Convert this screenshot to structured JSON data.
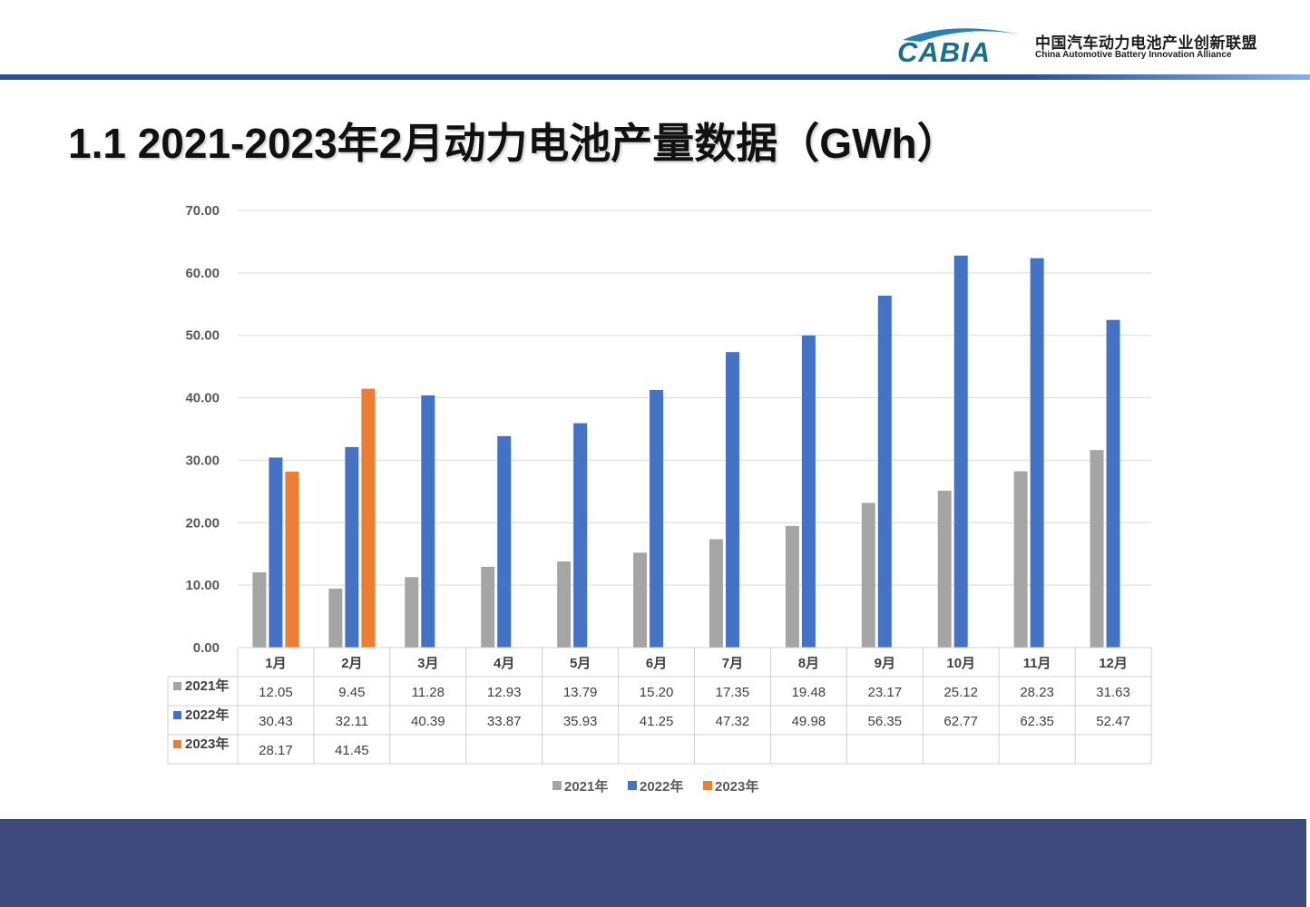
{
  "header": {
    "logo_text": "CABIA",
    "org_cn": "中国汽车动力电池产业创新联盟",
    "org_en": "China Automotive Battery Innovation Alliance"
  },
  "title": "1.1 2021-2023年2月动力电池产量数据（GWh）",
  "colors": {
    "series_2021": "#a5a5a5",
    "series_2022": "#4472c4",
    "series_2023": "#ed7d31",
    "header_line": "#2b4f8c",
    "footer": "#3f4a7c"
  },
  "chart_data": {
    "type": "bar",
    "title": "",
    "xlabel": "",
    "ylabel": "",
    "ylim": [
      0,
      70
    ],
    "yticks": [
      "0.00",
      "10.00",
      "20.00",
      "30.00",
      "40.00",
      "50.00",
      "60.00",
      "70.00"
    ],
    "grid": true,
    "legend_position": "bottom",
    "data_table": true,
    "categories": [
      "1月",
      "2月",
      "3月",
      "4月",
      "5月",
      "6月",
      "7月",
      "8月",
      "9月",
      "10月",
      "11月",
      "12月"
    ],
    "series": [
      {
        "name": "2021年",
        "values": [
          12.05,
          9.45,
          11.28,
          12.93,
          13.79,
          15.2,
          17.35,
          19.48,
          23.17,
          25.12,
          28.23,
          31.63
        ],
        "labels": [
          "12.05",
          "9.45",
          "11.28",
          "12.93",
          "13.79",
          "15.20",
          "17.35",
          "19.48",
          "23.17",
          "25.12",
          "28.23",
          "31.63"
        ]
      },
      {
        "name": "2022年",
        "values": [
          30.43,
          32.11,
          40.39,
          33.87,
          35.93,
          41.25,
          47.32,
          49.98,
          56.35,
          62.77,
          62.35,
          52.47
        ],
        "labels": [
          "30.43",
          "32.11",
          "40.39",
          "33.87",
          "35.93",
          "41.25",
          "47.32",
          "49.98",
          "56.35",
          "62.77",
          "62.35",
          "52.47"
        ]
      },
      {
        "name": "2023年",
        "values": [
          28.17,
          41.45,
          null,
          null,
          null,
          null,
          null,
          null,
          null,
          null,
          null,
          null
        ],
        "labels": [
          "28.17",
          "41.45",
          "",
          "",
          "",
          "",
          "",
          "",
          "",
          "",
          "",
          ""
        ]
      }
    ]
  }
}
